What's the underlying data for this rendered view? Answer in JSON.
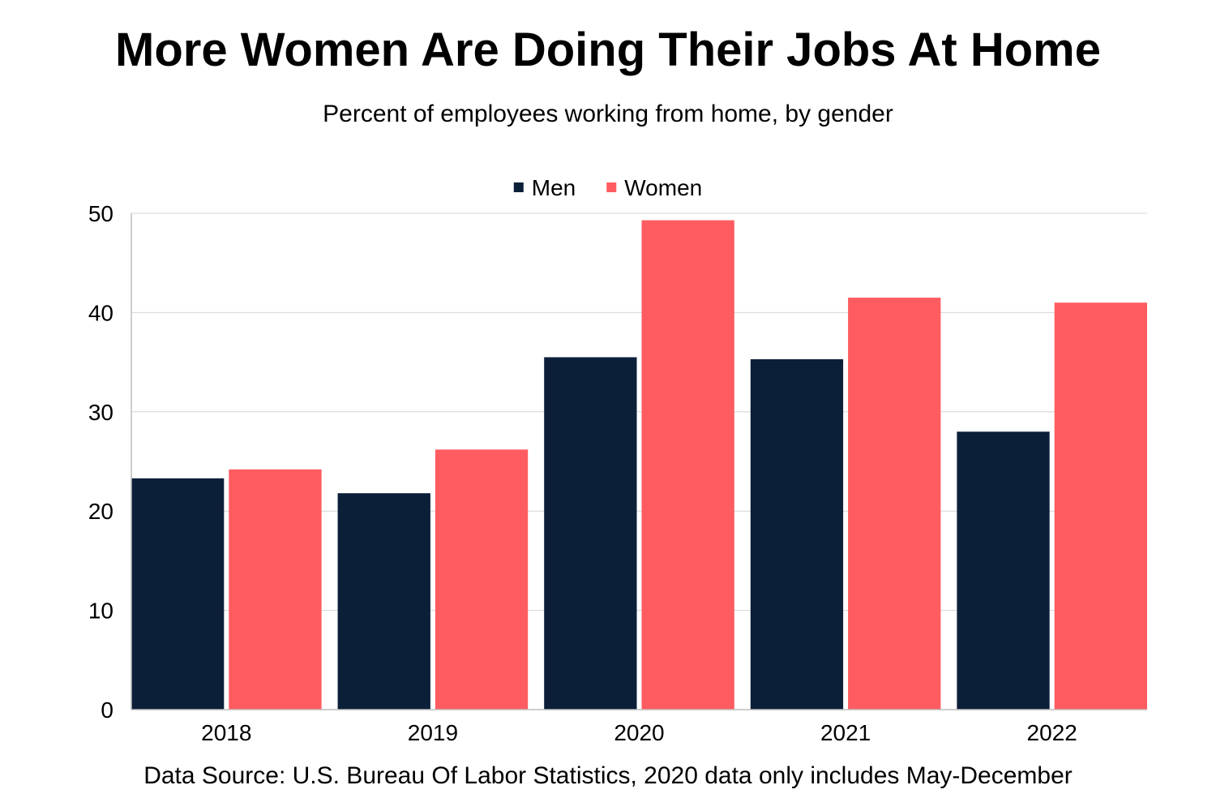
{
  "chart_data": {
    "type": "bar",
    "title": "More Women Are Doing Their Jobs At Home",
    "subtitle": "Percent of employees working from home, by gender",
    "categories": [
      "2018",
      "2019",
      "2020",
      "2021",
      "2022"
    ],
    "series": [
      {
        "name": "Men",
        "color": "#0b1f38",
        "values": [
          23.3,
          21.8,
          35.5,
          35.3,
          28.0
        ]
      },
      {
        "name": "Women",
        "color": "#ff5c61",
        "values": [
          24.2,
          26.2,
          49.3,
          41.5,
          41.0
        ]
      }
    ],
    "xlabel": "",
    "ylabel": "",
    "ylim": [
      0,
      50
    ],
    "yticks": [
      0,
      10,
      20,
      30,
      40,
      50
    ],
    "grid": true,
    "legend_position": "top-center",
    "source": "Data Source: U.S. Bureau Of Labor Statistics, 2020 data only includes May-December"
  }
}
